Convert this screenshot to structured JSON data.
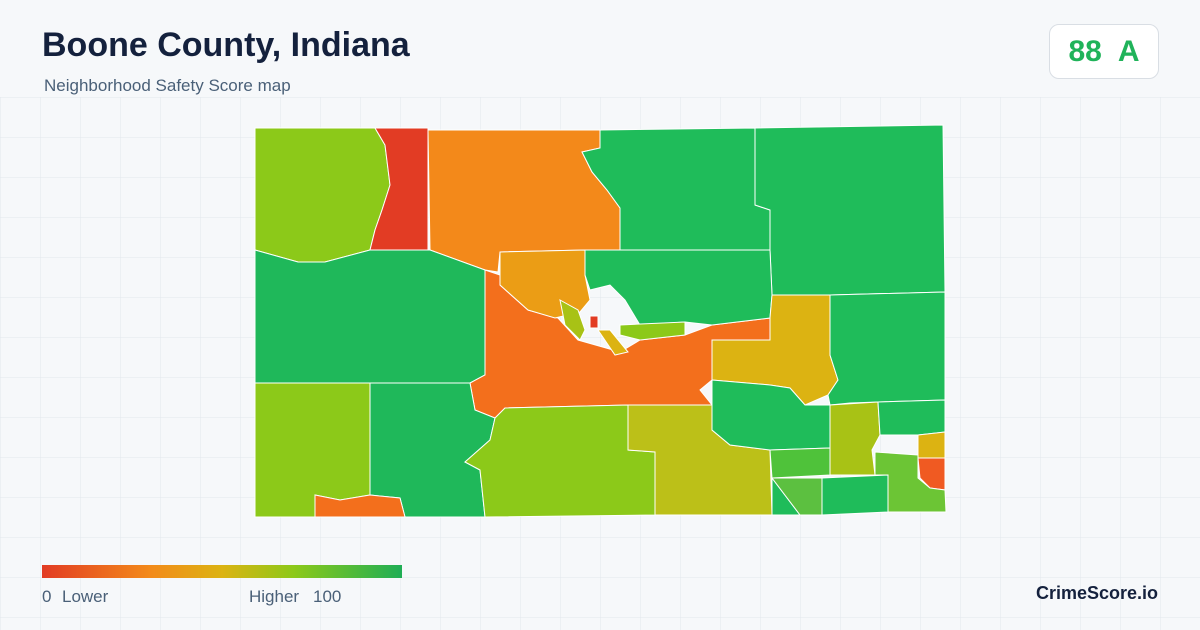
{
  "header": {
    "title": "Boone County, Indiana",
    "subtitle": "Neighborhood Safety Score map"
  },
  "score": {
    "value": 88,
    "grade": "A"
  },
  "legend": {
    "min": 0,
    "min_label": "Lower",
    "max": 100,
    "max_label": "Higher"
  },
  "brand": "CrimeScore.io"
}
